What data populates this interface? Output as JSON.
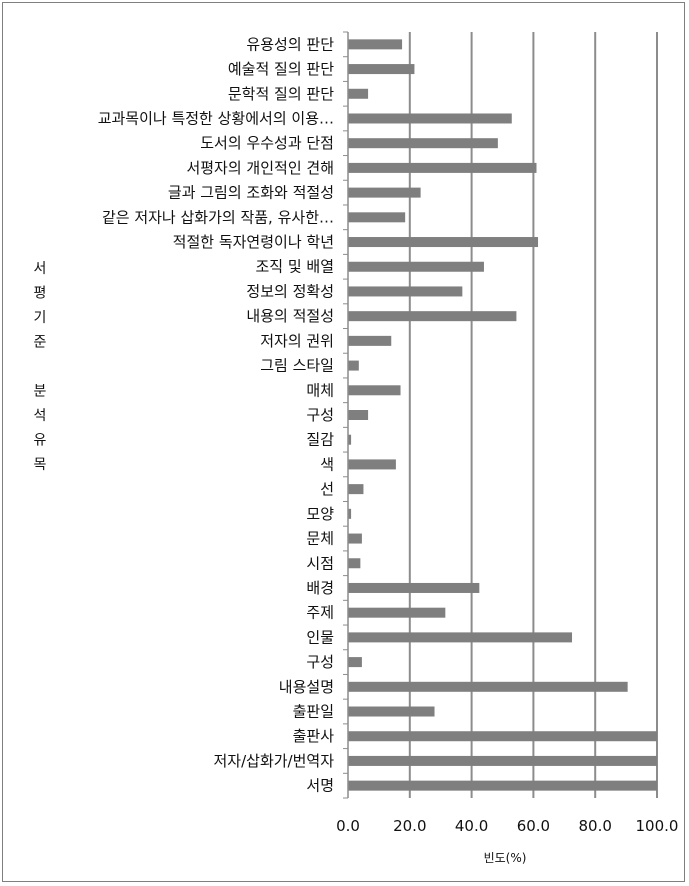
{
  "chart_data": {
    "type": "bar",
    "orientation": "horizontal",
    "categories": [
      "유용성의 판단",
      "예술적 질의 판단",
      "문학적 질의 판단",
      "교과목이나 특정한 상황에서의 이용…",
      "도서의 우수성과 단점",
      "서평자의 개인적인 견해",
      "글과 그림의 조화와 적절성",
      "같은 저자나 삽화가의 작품, 유사한…",
      "적절한 독자연령이나 학년",
      "조직 및 배열",
      "정보의 정확성",
      "내용의 적절성",
      "저자의 권위",
      "그림 스타일",
      "매체",
      "구성",
      "질감",
      "색",
      "선",
      "모양",
      "문체",
      "시점",
      "배경",
      "주제",
      "인물",
      "구성",
      "내용설명",
      "출판일",
      "출판사",
      "저자/삽화가/번역자",
      "서명"
    ],
    "values": [
      17.5,
      21.5,
      6.5,
      53.0,
      48.5,
      61.0,
      23.5,
      18.5,
      61.5,
      44.0,
      37.0,
      54.5,
      14.0,
      3.5,
      17.0,
      6.5,
      1.0,
      15.5,
      5.0,
      1.0,
      4.5,
      4.0,
      42.5,
      31.5,
      72.5,
      4.5,
      90.5,
      28.0,
      100.0,
      100.0,
      100.0
    ],
    "xlabel": "빈도(%)",
    "ylabel_chars": [
      "서",
      "평",
      "기",
      "준",
      "",
      "분",
      "석",
      "유",
      "목"
    ],
    "xlim": [
      0,
      100
    ],
    "xticks": [
      "0.0",
      "20.0",
      "40.0",
      "60.0",
      "80.0",
      "100.0"
    ],
    "bar_color": "#7f7f7f",
    "grid": true
  }
}
